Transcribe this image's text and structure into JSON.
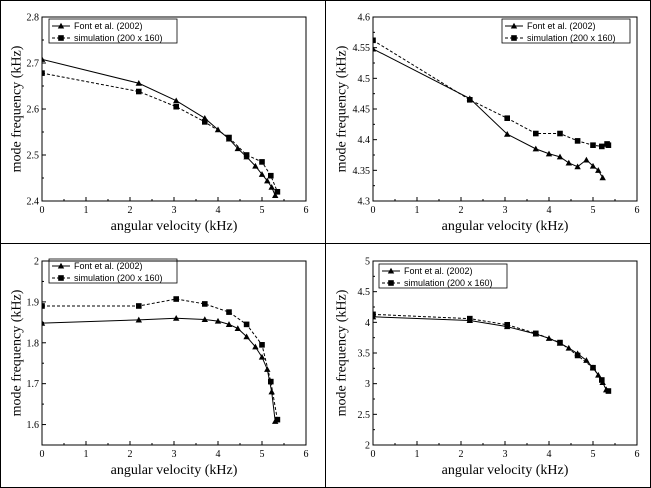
{
  "figure": {
    "panels": [
      {
        "id": "top-left",
        "xlabel": "angular velocity (kHz)",
        "ylabel": "mode frequency (kHz)",
        "xlim": [
          0,
          6
        ],
        "ylim": [
          2.4,
          2.8
        ],
        "xticks": [
          "0",
          "1",
          "2",
          "3",
          "4",
          "5",
          "6"
        ],
        "yticks": [
          "2.4",
          "2.5",
          "2.6",
          "2.7",
          "2.8"
        ],
        "legend_position": "top-left"
      },
      {
        "id": "top-right",
        "xlabel": "angular velocity (kHz)",
        "ylabel": "mode frequency (kHz)",
        "xlim": [
          0,
          6
        ],
        "ylim": [
          4.3,
          4.6
        ],
        "xticks": [
          "0",
          "1",
          "2",
          "3",
          "4",
          "5",
          "6"
        ],
        "yticks": [
          "4.3",
          "4.35",
          "4.4",
          "4.45",
          "4.5",
          "4.55",
          "4.6"
        ],
        "legend_position": "top-right"
      },
      {
        "id": "bottom-left",
        "xlabel": "angular velocity (kHz)",
        "ylabel": "mode frequency (kHz)",
        "xlim": [
          0,
          6
        ],
        "ylim": [
          1.55,
          2.0
        ],
        "xticks": [
          "0",
          "1",
          "2",
          "3",
          "4",
          "5",
          "6"
        ],
        "yticks": [
          "1.6",
          "1.7",
          "1.8",
          "1.9",
          "2"
        ],
        "legend_position": "top-left"
      },
      {
        "id": "bottom-right",
        "xlabel": "angular velocity (kHz)",
        "ylabel": "mode frequency (kHz)",
        "xlim": [
          0,
          6
        ],
        "ylim": [
          2.0,
          5.0
        ],
        "xticks": [
          "0",
          "1",
          "2",
          "3",
          "4",
          "5",
          "6"
        ],
        "yticks": [
          "2",
          "2.5",
          "3",
          "3.5",
          "4",
          "4.5",
          "5"
        ],
        "legend_position": "top-center"
      }
    ]
  },
  "chart_data": [
    {
      "type": "line",
      "title": "",
      "xlabel": "angular velocity (kHz)",
      "ylabel": "mode frequency (kHz)",
      "xlim": [
        0,
        6
      ],
      "ylim": [
        2.4,
        2.8
      ],
      "series": [
        {
          "name": "Font et al. (2002)",
          "marker": "triangle",
          "style": "solid",
          "x": [
            0.0,
            2.2,
            3.05,
            3.7,
            4.0,
            4.25,
            4.45,
            4.65,
            4.85,
            5.0,
            5.12,
            5.22,
            5.3
          ],
          "y": [
            2.708,
            2.656,
            2.618,
            2.58,
            2.555,
            2.535,
            2.514,
            2.496,
            2.476,
            2.458,
            2.444,
            2.43,
            2.412
          ]
        },
        {
          "name": "simulation (200 x 160)",
          "marker": "square",
          "style": "dashed",
          "x": [
            0.0,
            2.2,
            3.05,
            3.7,
            4.25,
            4.65,
            5.0,
            5.2,
            5.35
          ],
          "y": [
            2.678,
            2.638,
            2.605,
            2.572,
            2.538,
            2.5,
            2.485,
            2.455,
            2.42
          ]
        }
      ]
    },
    {
      "type": "line",
      "title": "",
      "xlabel": "angular velocity (kHz)",
      "ylabel": "mode frequency (kHz)",
      "xlim": [
        0,
        6
      ],
      "ylim": [
        4.3,
        4.6
      ],
      "series": [
        {
          "name": "Font et al. (2002)",
          "marker": "triangle",
          "style": "solid",
          "x": [
            0.0,
            2.2,
            3.05,
            3.7,
            4.0,
            4.25,
            4.45,
            4.65,
            4.85,
            5.0,
            5.12,
            5.22
          ],
          "y": [
            4.548,
            4.467,
            4.409,
            4.385,
            4.377,
            4.372,
            4.362,
            4.356,
            4.367,
            4.357,
            4.35,
            4.338
          ]
        },
        {
          "name": "simulation (200 x 160)",
          "marker": "square",
          "style": "dashed",
          "x": [
            0.0,
            2.2,
            3.05,
            3.7,
            4.25,
            4.65,
            5.0,
            5.2,
            5.32,
            5.35
          ],
          "y": [
            4.562,
            4.465,
            4.435,
            4.41,
            4.41,
            4.398,
            4.391,
            4.389,
            4.393,
            4.391
          ]
        }
      ]
    },
    {
      "type": "line",
      "title": "",
      "xlabel": "angular velocity (kHz)",
      "ylabel": "mode frequency (kHz)",
      "xlim": [
        0,
        6
      ],
      "ylim": [
        1.55,
        2.0
      ],
      "series": [
        {
          "name": "Font et al. (2002)",
          "marker": "triangle",
          "style": "solid",
          "x": [
            0.0,
            2.2,
            3.05,
            3.7,
            4.0,
            4.25,
            4.45,
            4.65,
            4.85,
            5.0,
            5.12,
            5.22,
            5.3
          ],
          "y": [
            1.848,
            1.856,
            1.86,
            1.857,
            1.853,
            1.845,
            1.835,
            1.815,
            1.79,
            1.765,
            1.735,
            1.68,
            1.608
          ]
        },
        {
          "name": "simulation (200 x 160)",
          "marker": "square",
          "style": "dashed",
          "x": [
            0.0,
            2.2,
            3.05,
            3.7,
            4.25,
            4.65,
            5.0,
            5.2,
            5.35
          ],
          "y": [
            1.89,
            1.89,
            1.907,
            1.895,
            1.875,
            1.845,
            1.795,
            1.705,
            1.612
          ]
        }
      ]
    },
    {
      "type": "line",
      "title": "",
      "xlabel": "angular velocity (kHz)",
      "ylabel": "mode frequency (kHz)",
      "xlim": [
        0,
        6
      ],
      "ylim": [
        2.0,
        5.0
      ],
      "series": [
        {
          "name": "Font et al. (2002)",
          "marker": "triangle",
          "style": "solid",
          "x": [
            0.0,
            2.2,
            3.05,
            3.7,
            4.0,
            4.25,
            4.45,
            4.65,
            4.85,
            5.0,
            5.12,
            5.22,
            5.3
          ],
          "y": [
            4.09,
            4.03,
            3.93,
            3.81,
            3.74,
            3.66,
            3.58,
            3.49,
            3.38,
            3.26,
            3.14,
            3.02,
            2.9
          ]
        },
        {
          "name": "simulation (200 x 160)",
          "marker": "square",
          "style": "dashed",
          "x": [
            0.0,
            2.2,
            3.05,
            3.7,
            4.25,
            4.65,
            5.0,
            5.2,
            5.35
          ],
          "y": [
            4.13,
            4.06,
            3.96,
            3.82,
            3.67,
            3.46,
            3.26,
            3.06,
            2.88
          ]
        }
      ]
    }
  ]
}
